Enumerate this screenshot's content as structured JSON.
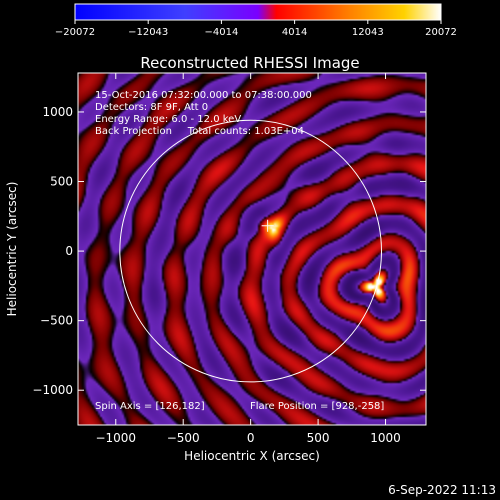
{
  "chart_data": {
    "type": "heatmap",
    "title": "Reconstructed RHESSI Image",
    "xlabel": "Heliocentric X (arcsec)",
    "ylabel": "Heliocentric Y (arcsec)",
    "xlim": [
      -1280,
      1300
    ],
    "ylim": [
      -1250,
      1280
    ],
    "xticks": [
      -1000,
      -500,
      0,
      500,
      1000
    ],
    "yticks": [
      -1000,
      -500,
      0,
      500,
      1000
    ],
    "xtick_labels": [
      "−1000",
      "−500",
      "0",
      "500",
      "1000"
    ],
    "ytick_labels": [
      "−1000",
      "−500",
      "0",
      "500",
      "1000"
    ],
    "colorbar": {
      "min": -20072,
      "max": 20072,
      "tick_values": [
        -20072,
        -12043,
        -4014,
        4014,
        12043,
        20072
      ],
      "tick_labels": [
        "−20072",
        "−12043",
        "−4014",
        "4014",
        "12043",
        "20072"
      ],
      "colormap": [
        "#0000ff",
        "#3f3fff",
        "#7a00ff",
        "#ff0000",
        "#ff8000",
        "#ffd200",
        "#ffffff"
      ]
    },
    "info_lines": [
      "15-Oct-2016 07:32:00.000 to 07:38:00.000",
      "Detectors: 8F 9F, Att 0",
      "Energy Range: 6.0 - 12.0 keV",
      "Back Projection     Total counts: 1.03E+04"
    ],
    "spin_axis": "Spin Axis = [126,182]",
    "flare_position_label": "Flare Position = [928,-258]",
    "sources": [
      {
        "x": 928,
        "y": -258,
        "peak": 20072
      },
      {
        "x": 170,
        "y": 170,
        "peak": 14000
      }
    ],
    "spin_axis_point": [
      126,
      182
    ],
    "solar_limb": {
      "center": [
        0,
        0
      ],
      "radius": 970
    }
  },
  "footer": {
    "date": "6-Sep-2022 11:13"
  }
}
